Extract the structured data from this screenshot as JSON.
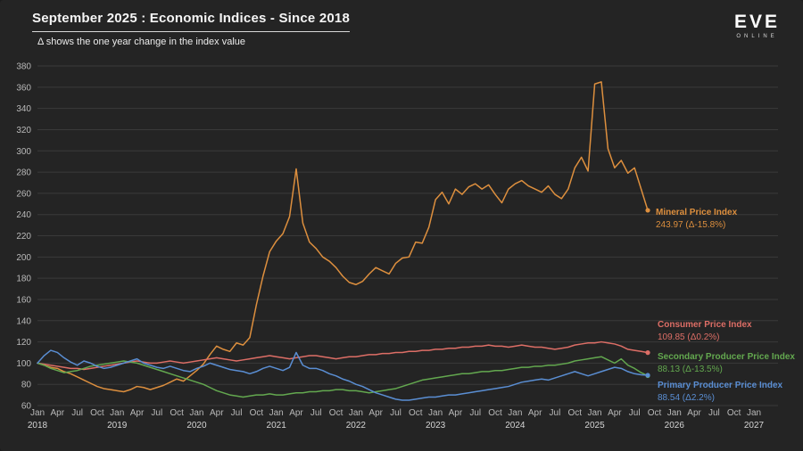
{
  "header": {
    "title": "September 2025 : Economic Indices - Since 2018",
    "subtitle": "Δ shows the one year change in the index value"
  },
  "logo": {
    "primary": "EVE",
    "secondary": "ONLINE"
  },
  "chart_data": {
    "type": "line",
    "title": "September 2025 : Economic Indices - Since 2018",
    "subtitle": "Δ shows the one year change in the index value",
    "x_start": "Jan 2018",
    "x_end": "Jan 2027",
    "x_month_tick_labels": [
      "Jan",
      "Apr",
      "Jul",
      "Oct"
    ],
    "x_year_labels": [
      "2018",
      "2019",
      "2020",
      "2021",
      "2022",
      "2023",
      "2024",
      "2025",
      "2026",
      "2027"
    ],
    "ylim": [
      60,
      380
    ],
    "y_ticks": [
      60,
      80,
      100,
      120,
      140,
      160,
      180,
      200,
      220,
      240,
      260,
      280,
      300,
      320,
      340,
      360,
      380
    ],
    "grid": "horizontal",
    "legend_position": "right-of-line-ends",
    "background_color": "#242424",
    "gridline_color": "#3a3a3a",
    "series": [
      {
        "name": "Mineral Price Index",
        "color": "#dd8f3e",
        "current_value": "243.97",
        "delta": "-15.8%",
        "value_label": "243.97 (Δ-15.8%)",
        "values": [
          100,
          98,
          96,
          95,
          92,
          90,
          87,
          84,
          81,
          78,
          76,
          75,
          74,
          73,
          75,
          78,
          77,
          75,
          77,
          79,
          82,
          85,
          83,
          88,
          93,
          99,
          108,
          116,
          113,
          111,
          119,
          117,
          124,
          155,
          182,
          205,
          215,
          222,
          238,
          283,
          232,
          214,
          208,
          200,
          196,
          190,
          182,
          176,
          174,
          177,
          184,
          190,
          187,
          184,
          194,
          199,
          200,
          214,
          213,
          228,
          254,
          261,
          250,
          264,
          259,
          266,
          269,
          264,
          268,
          259,
          251,
          264,
          269,
          272,
          267,
          264,
          261,
          267,
          259,
          255,
          264,
          284,
          294,
          281,
          363,
          365,
          302,
          284,
          291,
          279,
          284,
          264,
          243.97
        ]
      },
      {
        "name": "Consumer Price Index",
        "color": "#dd6e66",
        "current_value": "109.85",
        "delta": "0.2%",
        "value_label": "109.85 (Δ0.2%)",
        "values": [
          100,
          99,
          98,
          97,
          96,
          95,
          95,
          94,
          95,
          96,
          97,
          98,
          99,
          100,
          101,
          102,
          101,
          100,
          100,
          101,
          102,
          101,
          100,
          101,
          102,
          103,
          104,
          105,
          104,
          103,
          102,
          103,
          104,
          105,
          106,
          107,
          106,
          105,
          104,
          105,
          106,
          107,
          107,
          106,
          105,
          104,
          105,
          106,
          106,
          107,
          108,
          108,
          109,
          109,
          110,
          110,
          111,
          111,
          112,
          112,
          113,
          113,
          114,
          114,
          115,
          115,
          116,
          116,
          117,
          116,
          116,
          115,
          116,
          117,
          116,
          115,
          115,
          114,
          113,
          114,
          115,
          117,
          118,
          119,
          119,
          120,
          119,
          118,
          116,
          113,
          112,
          111,
          109.85
        ]
      },
      {
        "name": "Secondary Producer Price Index",
        "color": "#63a84f",
        "current_value": "88.13",
        "delta": "-13.5%",
        "value_label": "88.13 (Δ-13.5%)",
        "values": [
          100,
          98,
          95,
          93,
          91,
          92,
          93,
          95,
          97,
          98,
          99,
          100,
          101,
          102,
          101,
          100,
          98,
          96,
          94,
          92,
          90,
          88,
          86,
          84,
          82,
          80,
          77,
          74,
          72,
          70,
          69,
          68,
          69,
          70,
          70,
          71,
          70,
          70,
          71,
          72,
          72,
          73,
          73,
          74,
          74,
          75,
          75,
          74,
          74,
          73,
          72,
          73,
          74,
          75,
          76,
          78,
          80,
          82,
          84,
          85,
          86,
          87,
          88,
          89,
          90,
          90,
          91,
          92,
          92,
          93,
          93,
          94,
          95,
          96,
          96,
          97,
          97,
          98,
          98,
          99,
          100,
          102,
          103,
          104,
          105,
          106,
          103,
          100,
          104,
          98,
          95,
          91,
          88.13
        ]
      },
      {
        "name": "Primary Producer Price Index",
        "color": "#5a8ed3",
        "current_value": "88.54",
        "delta": "2.2%",
        "value_label": "88.54 (Δ2.2%)",
        "values": [
          100,
          107,
          112,
          110,
          105,
          101,
          98,
          102,
          100,
          97,
          95,
          96,
          98,
          100,
          102,
          104,
          100,
          98,
          96,
          95,
          97,
          95,
          93,
          92,
          95,
          97,
          100,
          98,
          96,
          94,
          93,
          92,
          90,
          92,
          95,
          97,
          95,
          93,
          96,
          110,
          98,
          95,
          95,
          93,
          90,
          88,
          85,
          83,
          80,
          78,
          75,
          72,
          70,
          68,
          66,
          65,
          65,
          66,
          67,
          68,
          68,
          69,
          70,
          70,
          71,
          72,
          73,
          74,
          75,
          76,
          77,
          78,
          80,
          82,
          83,
          84,
          85,
          84,
          86,
          88,
          90,
          92,
          90,
          88,
          90,
          92,
          94,
          96,
          95,
          92,
          90,
          89,
          88.54
        ]
      }
    ]
  }
}
